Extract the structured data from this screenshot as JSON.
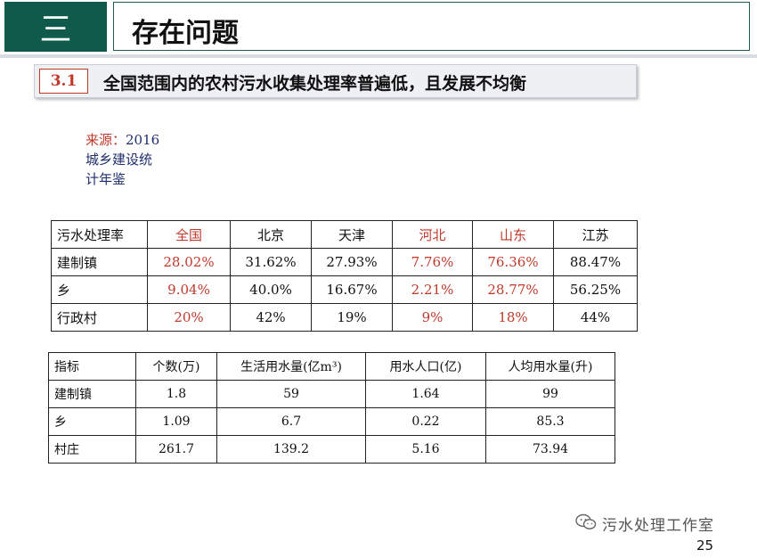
{
  "header": {
    "section": "三",
    "title": "存在问题"
  },
  "subheading": {
    "number": "3.1",
    "text": "全国范围内的农村污水收集处理率普遍低，且发展不均衡"
  },
  "source": {
    "label": "来源：",
    "year": "2016",
    "line2": "城乡建设统",
    "line3": "计年鉴"
  },
  "table1": {
    "headers": [
      "污水处理率",
      "全国",
      "北京",
      "天津",
      "河北",
      "山东",
      "江苏"
    ],
    "rows": [
      [
        "建制镇",
        "28.02%",
        "31.62%",
        "27.93%",
        "7.76%",
        "76.36%",
        "88.47%"
      ],
      [
        "乡",
        "9.04%",
        "40.0%",
        "16.67%",
        "2.21%",
        "28.77%",
        "56.25%"
      ],
      [
        "行政村",
        "20%",
        "42%",
        "19%",
        "9%",
        "18%",
        "44%"
      ]
    ],
    "highlight_color": "#c0392b"
  },
  "table2": {
    "headers": [
      "指标",
      "个数(万)",
      "生活用水量(亿m³)",
      "用水人口(亿)",
      "人均用水量(升)"
    ],
    "rows": [
      [
        "建制镇",
        "1.8",
        "59",
        "1.64",
        "99"
      ],
      [
        "乡",
        "1.09",
        "6.7",
        "0.22",
        "85.3"
      ],
      [
        "村庄",
        "261.7",
        "139.2",
        "5.16",
        "73.94"
      ]
    ]
  },
  "watermark": {
    "icon": "wechat-icon",
    "text": "污水处理工作室"
  },
  "page_number": "25",
  "colors": {
    "section_bg": "#0f5a4b",
    "accent_red": "#c0392b"
  }
}
